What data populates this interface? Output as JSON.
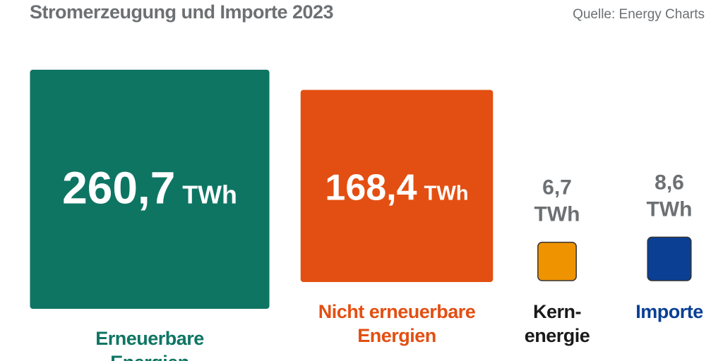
{
  "chart_data": {
    "type": "square-area",
    "title": "Stromerzeugung und Importe 2023",
    "source": "Quelle: Energy Charts",
    "unit": "TWh",
    "categories": [
      "Erneuerbare Energien",
      "Nicht erneuerbare\nEnergien",
      "Kern-\nenergie",
      "Importe"
    ],
    "values": [
      260.7,
      168.4,
      6.7,
      8.6
    ],
    "value_labels": [
      "260,7",
      "168,4",
      "6,7",
      "8,6"
    ],
    "colors": [
      "#0e7563",
      "#e34f12",
      "#f09300",
      "#0a3f94"
    ],
    "label_colors": [
      "#0e7563",
      "#e34f12",
      "#1a1a1a",
      "#0a3f94"
    ]
  }
}
